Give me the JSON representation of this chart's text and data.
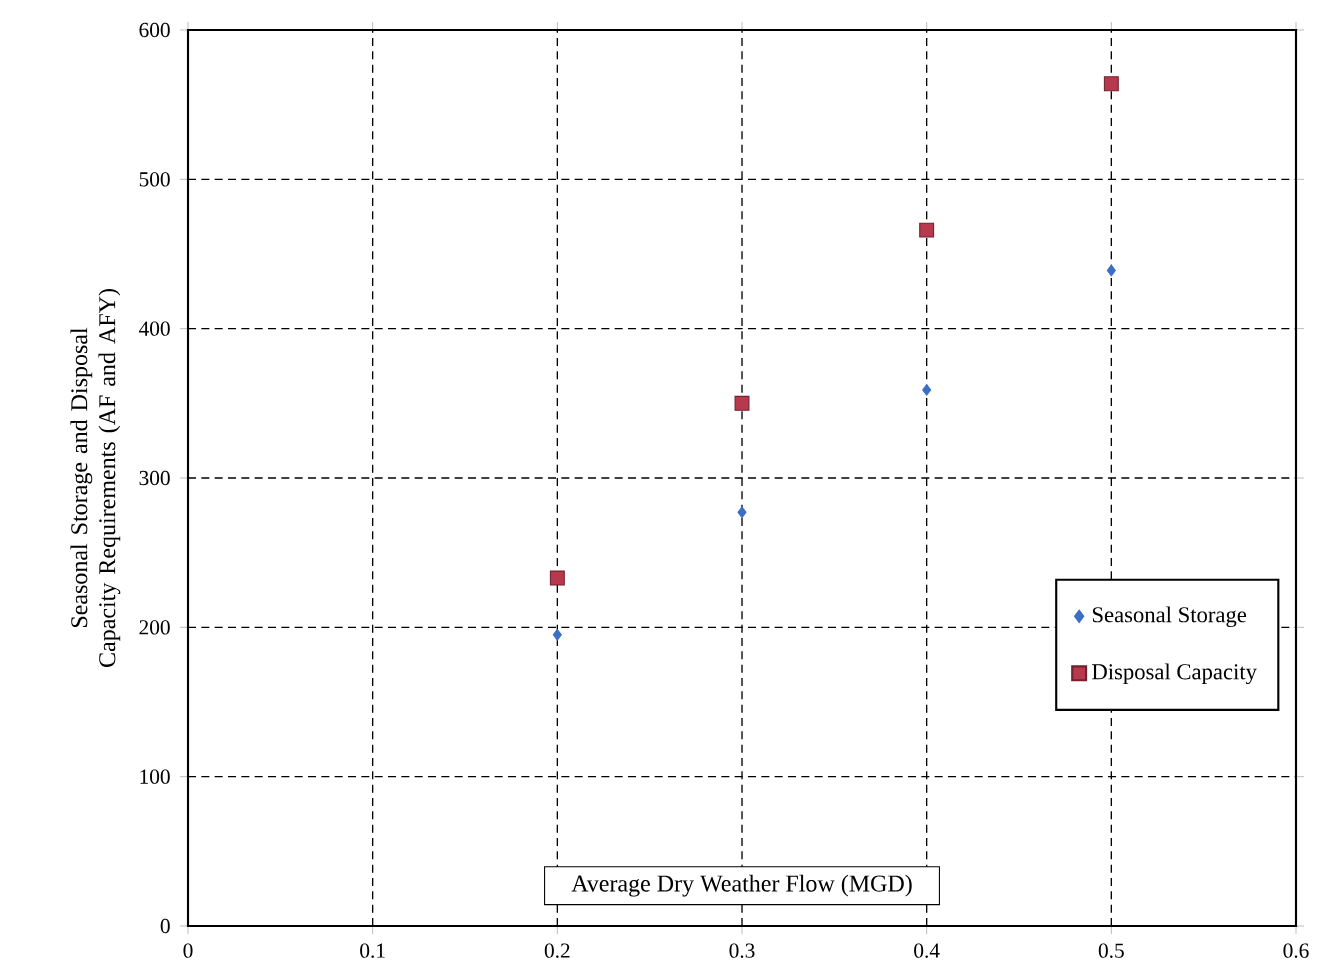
{
  "chart_data": {
    "type": "scatter",
    "xlabel": "Average Dry Weather Flow (MGD)",
    "ylabel": "Seasonal Storage and Disposal Capacity Requirements (AF and AFY)",
    "x": [
      0.2,
      0.3,
      0.4,
      0.5
    ],
    "series": [
      {
        "name": "Seasonal Storage",
        "color": "#3a6fc4",
        "marker": "diamond",
        "values": [
          195,
          277,
          359,
          439
        ]
      },
      {
        "name": "Disposal Capacity",
        "color": "#b8394e",
        "marker": "square",
        "values": [
          233,
          350,
          466,
          564
        ]
      }
    ],
    "xlim": [
      0,
      0.6
    ],
    "ylim": [
      0,
      600
    ],
    "xticks": [
      0,
      0.1,
      0.2,
      0.3,
      0.4,
      0.5,
      0.6
    ],
    "yticks": [
      0,
      100,
      200,
      300,
      400,
      500,
      600
    ],
    "grid": true,
    "legend": "bottom right"
  }
}
